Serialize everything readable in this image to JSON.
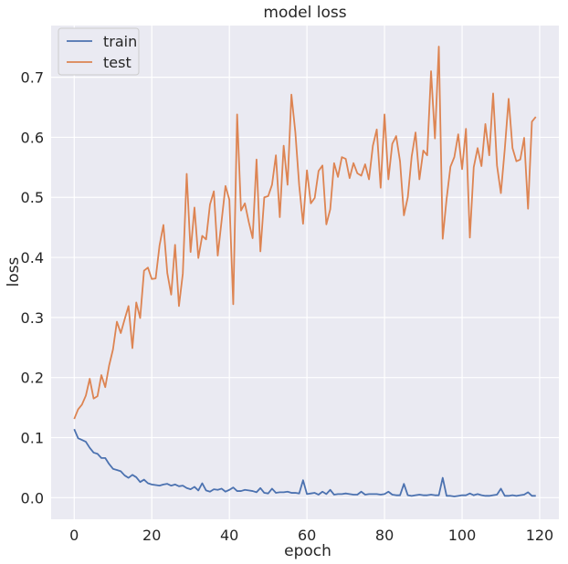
{
  "chart_data": {
    "type": "line",
    "title": "model loss",
    "xlabel": "epoch",
    "ylabel": "loss",
    "xlim": [
      -5.95,
      124.95
    ],
    "ylim": [
      -0.036,
      0.786
    ],
    "xticks": [
      0,
      20,
      40,
      60,
      80,
      100,
      120
    ],
    "yticks": [
      0.0,
      0.1,
      0.2,
      0.3,
      0.4,
      0.5,
      0.6,
      0.7
    ],
    "ytick_labels": [
      "0.0",
      "0.1",
      "0.2",
      "0.3",
      "0.4",
      "0.5",
      "0.6",
      "0.7"
    ],
    "grid": true,
    "legend_position": "top-left",
    "colors": {
      "background": "#eaeaf2",
      "grid": "#ffffff",
      "train": "#4c72b0",
      "test": "#dd8452"
    },
    "series": [
      {
        "name": "train",
        "x_start": 0,
        "values": [
          0.114,
          0.099,
          0.096,
          0.093,
          0.083,
          0.075,
          0.073,
          0.066,
          0.066,
          0.056,
          0.048,
          0.046,
          0.044,
          0.037,
          0.033,
          0.038,
          0.034,
          0.026,
          0.03,
          0.024,
          0.022,
          0.021,
          0.02,
          0.022,
          0.023,
          0.02,
          0.022,
          0.019,
          0.02,
          0.016,
          0.014,
          0.018,
          0.012,
          0.024,
          0.012,
          0.01,
          0.014,
          0.013,
          0.015,
          0.01,
          0.013,
          0.017,
          0.011,
          0.011,
          0.013,
          0.012,
          0.011,
          0.009,
          0.016,
          0.008,
          0.007,
          0.015,
          0.008,
          0.009,
          0.009,
          0.01,
          0.008,
          0.008,
          0.007,
          0.029,
          0.006,
          0.007,
          0.008,
          0.005,
          0.01,
          0.006,
          0.013,
          0.005,
          0.006,
          0.006,
          0.007,
          0.006,
          0.005,
          0.005,
          0.01,
          0.005,
          0.006,
          0.006,
          0.006,
          0.005,
          0.006,
          0.01,
          0.005,
          0.004,
          0.004,
          0.023,
          0.004,
          0.003,
          0.004,
          0.005,
          0.004,
          0.004,
          0.005,
          0.004,
          0.004,
          0.033,
          0.003,
          0.003,
          0.002,
          0.003,
          0.004,
          0.004,
          0.007,
          0.004,
          0.006,
          0.004,
          0.003,
          0.003,
          0.004,
          0.005,
          0.015,
          0.003,
          0.003,
          0.004,
          0.003,
          0.004,
          0.005,
          0.009,
          0.003,
          0.003
        ]
      },
      {
        "name": "test",
        "x_start": 0,
        "values": [
          0.131,
          0.147,
          0.155,
          0.17,
          0.198,
          0.165,
          0.169,
          0.204,
          0.184,
          0.22,
          0.247,
          0.293,
          0.274,
          0.297,
          0.319,
          0.249,
          0.325,
          0.299,
          0.378,
          0.383,
          0.364,
          0.365,
          0.42,
          0.454,
          0.374,
          0.338,
          0.421,
          0.319,
          0.373,
          0.539,
          0.409,
          0.483,
          0.399,
          0.436,
          0.43,
          0.488,
          0.51,
          0.403,
          0.461,
          0.519,
          0.496,
          0.322,
          0.638,
          0.478,
          0.49,
          0.459,
          0.432,
          0.563,
          0.41,
          0.5,
          0.502,
          0.521,
          0.57,
          0.467,
          0.586,
          0.521,
          0.671,
          0.609,
          0.52,
          0.456,
          0.545,
          0.49,
          0.499,
          0.544,
          0.553,
          0.455,
          0.48,
          0.557,
          0.534,
          0.567,
          0.564,
          0.532,
          0.557,
          0.54,
          0.536,
          0.555,
          0.53,
          0.586,
          0.613,
          0.516,
          0.638,
          0.53,
          0.589,
          0.602,
          0.56,
          0.47,
          0.5,
          0.568,
          0.608,
          0.53,
          0.578,
          0.57,
          0.71,
          0.598,
          0.751,
          0.431,
          0.497,
          0.551,
          0.567,
          0.605,
          0.547,
          0.614,
          0.433,
          0.55,
          0.582,
          0.552,
          0.622,
          0.57,
          0.673,
          0.553,
          0.507,
          0.58,
          0.664,
          0.582,
          0.56,
          0.563,
          0.599,
          0.481,
          0.626,
          0.634
        ]
      }
    ]
  }
}
